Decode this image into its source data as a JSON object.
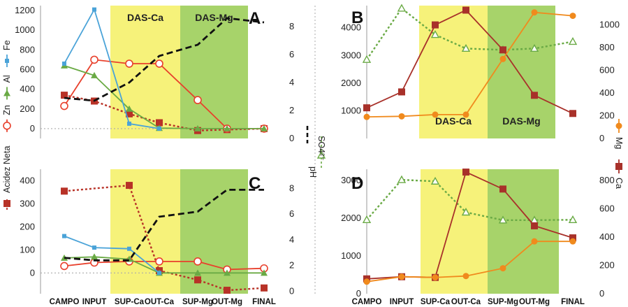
{
  "figure": {
    "categories": [
      "CAMPO",
      "INPUT",
      "SUP-Ca",
      "OUT-Ca",
      "SUP-Mg",
      "OUT-Mg",
      "FINAL"
    ],
    "zones": [
      {
        "label": "DAS-Ca",
        "color": "#f6f27a"
      },
      {
        "label": "DAS-Mg",
        "color": "#a7d36a"
      }
    ],
    "left_legend": [
      {
        "label": "Acidez Neta",
        "color": "#b83227",
        "marker": "square",
        "dashed": true
      },
      {
        "label": "Zn",
        "color": "#e8402c",
        "marker": "circle-open",
        "dashed": false
      },
      {
        "label": "Al",
        "color": "#6aaa45",
        "marker": "triangle",
        "dashed": false
      },
      {
        "label": "Fe",
        "color": "#4aa3d8",
        "marker": "square-small",
        "dashed": false
      }
    ],
    "middle_legend": [
      {
        "label": "pH",
        "color": "#111111",
        "dashed": true
      },
      {
        "label": "SO4²⁻",
        "color": "#6aaa45",
        "marker": "triangle-open",
        "dashed": true
      }
    ],
    "right_legend": [
      {
        "label": "Mg",
        "color": "#f08a1d",
        "marker": "circle"
      },
      {
        "label": "Ca",
        "color": "#a8312a",
        "marker": "square"
      }
    ]
  },
  "chart_data": [
    {
      "panel": "A",
      "type": "line",
      "categories": [
        "CAMPO",
        "INPUT",
        "SUP-Ca",
        "OUT-Ca",
        "SUP-Mg",
        "OUT-Mg",
        "FINAL"
      ],
      "zones_shown": [
        "DAS-Ca",
        "DAS-Mg"
      ],
      "zone_label_position": "top",
      "y_left": {
        "range": [
          -100,
          1250
        ],
        "ticks": [
          0,
          200,
          400,
          600,
          800,
          1000,
          1200
        ]
      },
      "y_right": {
        "range": [
          0,
          9.5
        ],
        "ticks": [
          0,
          2,
          4,
          6,
          8
        ]
      },
      "series": [
        {
          "name": "Acidez Neta",
          "axis": "left",
          "color": "#b83227",
          "marker": "square",
          "dashed": true,
          "x": [
            0,
            1,
            2,
            3,
            4,
            5,
            6
          ],
          "values": [
            340,
            280,
            150,
            60,
            -20,
            -10,
            0
          ]
        },
        {
          "name": "Zn",
          "axis": "left",
          "color": "#e8402c",
          "marker": "circle-open",
          "dashed": false,
          "x": [
            0,
            1,
            2,
            3,
            4,
            5,
            6
          ],
          "values": [
            230,
            700,
            660,
            660,
            290,
            0,
            0
          ]
        },
        {
          "name": "Al",
          "axis": "left",
          "color": "#6aaa45",
          "marker": "triangle",
          "dashed": false,
          "x": [
            0,
            1,
            2,
            3,
            4,
            5,
            6
          ],
          "values": [
            640,
            540,
            200,
            5,
            0,
            0,
            0
          ]
        },
        {
          "name": "Fe",
          "axis": "left",
          "color": "#4aa3d8",
          "marker": "square-small",
          "dashed": false,
          "x": [
            0,
            1,
            2,
            3
          ],
          "values": [
            660,
            1210,
            50,
            0
          ]
        },
        {
          "name": "pH",
          "axis": "right",
          "color": "#111111",
          "marker": "none",
          "dashed": true,
          "x": [
            0,
            1,
            2,
            3,
            4,
            5,
            6
          ],
          "values": [
            2.9,
            2.7,
            4.0,
            5.9,
            6.7,
            8.6,
            8.3
          ]
        }
      ]
    },
    {
      "panel": "B",
      "type": "line",
      "categories": [
        "CAMPO",
        "INPUT",
        "SUP-Ca",
        "OUT-Ca",
        "SUP-Mg",
        "OUT-Mg",
        "FINAL"
      ],
      "zones_shown": [
        "DAS-Ca",
        "DAS-Mg"
      ],
      "zone_label_position": "bottom",
      "y_left": {
        "range": [
          0,
          4800
        ],
        "ticks": [
          1000,
          2000,
          3000,
          4000
        ]
      },
      "y_right": {
        "range": [
          0,
          1170
        ],
        "ticks": [
          0,
          200,
          400,
          600,
          800,
          1000
        ]
      },
      "series": [
        {
          "name": "SO4²⁻",
          "axis": "left",
          "color": "#6aaa45",
          "marker": "triangle-open",
          "dashed": true,
          "x": [
            0,
            1,
            2,
            3,
            4,
            5,
            6
          ],
          "values": [
            2850,
            4700,
            3750,
            3250,
            3200,
            3250,
            3500
          ]
        },
        {
          "name": "Ca",
          "axis": "right",
          "color": "#a8312a",
          "marker": "square",
          "dashed": false,
          "x": [
            0,
            1,
            2,
            3,
            4,
            5,
            6
          ],
          "values": [
            270,
            410,
            1000,
            1130,
            780,
            380,
            220
          ]
        },
        {
          "name": "Mg",
          "axis": "right",
          "color": "#f08a1d",
          "marker": "circle",
          "dashed": false,
          "x": [
            0,
            1,
            2,
            3,
            4,
            5,
            6
          ],
          "values": [
            190,
            195,
            210,
            210,
            700,
            1110,
            1080
          ]
        }
      ]
    },
    {
      "panel": "C",
      "type": "line",
      "categories": [
        "CAMPO",
        "INPUT",
        "SUP-Ca",
        "OUT-Ca",
        "SUP-Mg",
        "OUT-Mg",
        "FINAL"
      ],
      "zones_shown": [
        "DAS-Ca",
        "DAS-Mg"
      ],
      "y_left": {
        "range": [
          -90,
          450
        ],
        "ticks": [
          0,
          100,
          200,
          300,
          400
        ]
      },
      "y_right": {
        "range": [
          -0.2,
          9.5
        ],
        "ticks": [
          0,
          2,
          4,
          6,
          8
        ]
      },
      "series": [
        {
          "name": "Acidez Neta",
          "axis": "left",
          "color": "#b83227",
          "marker": "square",
          "dashed": true,
          "x": [
            0,
            2,
            3,
            4,
            5,
            6
          ],
          "values": [
            355,
            380,
            10,
            -30,
            -75,
            -65
          ]
        },
        {
          "name": "Zn",
          "axis": "left",
          "color": "#e8402c",
          "marker": "circle-open",
          "dashed": false,
          "x": [
            0,
            1,
            2,
            3,
            4,
            5,
            6
          ],
          "values": [
            30,
            45,
            50,
            50,
            50,
            15,
            20
          ]
        },
        {
          "name": "Al",
          "axis": "left",
          "color": "#6aaa45",
          "marker": "triangle",
          "dashed": false,
          "x": [
            0,
            1,
            2,
            3,
            4,
            5,
            6
          ],
          "values": [
            65,
            70,
            60,
            0,
            0,
            0,
            0
          ]
        },
        {
          "name": "Fe",
          "axis": "left",
          "color": "#4aa3d8",
          "marker": "square-small",
          "dashed": false,
          "x": [
            0,
            1,
            2,
            3
          ],
          "values": [
            160,
            110,
            105,
            0
          ]
        },
        {
          "name": "pH",
          "axis": "right",
          "color": "#111111",
          "marker": "none",
          "dashed": true,
          "x": [
            0,
            1,
            2,
            3,
            4,
            5,
            6
          ],
          "values": [
            2.6,
            2.4,
            2.4,
            5.8,
            6.2,
            7.9,
            7.9
          ]
        }
      ]
    },
    {
      "panel": "D",
      "type": "line",
      "categories": [
        "CAMPO",
        "INPUT",
        "SUP-Ca",
        "OUT-Ca",
        "SUP-Mg",
        "OUT-Mg",
        "FINAL"
      ],
      "zones_shown": [
        "DAS-Ca",
        "DAS-Mg"
      ],
      "y_left": {
        "range": [
          0,
          3300
        ],
        "ticks": [
          0,
          1000,
          2000,
          3000
        ]
      },
      "y_right": {
        "range": [
          0,
          880
        ],
        "ticks": [
          0,
          200,
          400,
          600,
          800
        ]
      },
      "series": [
        {
          "name": "SO4²⁻",
          "axis": "left",
          "color": "#6aaa45",
          "marker": "triangle-open",
          "dashed": true,
          "x": [
            0,
            1,
            2,
            3,
            4,
            5,
            6
          ],
          "values": [
            1960,
            3020,
            2980,
            2160,
            1950,
            1950,
            1960
          ]
        },
        {
          "name": "Ca",
          "axis": "right",
          "color": "#a8312a",
          "marker": "square",
          "dashed": false,
          "x": [
            0,
            1,
            2,
            3,
            4,
            5,
            6
          ],
          "values": [
            105,
            120,
            115,
            860,
            740,
            480,
            395
          ]
        },
        {
          "name": "Mg",
          "axis": "right",
          "color": "#f08a1d",
          "marker": "circle",
          "dashed": false,
          "x": [
            0,
            1,
            2,
            3,
            4,
            5,
            6
          ],
          "values": [
            85,
            120,
            115,
            125,
            180,
            370,
            370
          ]
        }
      ]
    }
  ]
}
